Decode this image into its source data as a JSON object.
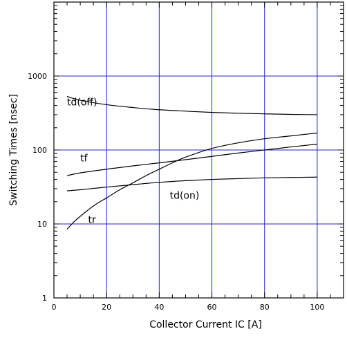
{
  "chart_data": {
    "type": "line",
    "title": "",
    "xlabel": "Collector Current IC [A]",
    "ylabel": "Switching Times [nsec]",
    "xlim": [
      0,
      110
    ],
    "ylim": [
      1,
      10000
    ],
    "yscale": "log",
    "grid": true,
    "grid_color": "#2222cc",
    "x_ticks": [
      0,
      20,
      40,
      60,
      80,
      100
    ],
    "x_tick_labels": [
      "0",
      "20",
      "40",
      "60",
      "80",
      "100"
    ],
    "y_ticks": [
      1,
      10,
      100,
      1000
    ],
    "y_tick_labels": [
      "1",
      "10",
      "100",
      "1000"
    ],
    "series": [
      {
        "name": "td(off)",
        "x": [
          5,
          10,
          20,
          30,
          40,
          50,
          60,
          70,
          80,
          90,
          100
        ],
        "y": [
          530,
          470,
          410,
          375,
          350,
          335,
          322,
          314,
          308,
          303,
          300
        ]
      },
      {
        "name": "tf",
        "x": [
          5,
          10,
          20,
          30,
          40,
          50,
          60,
          70,
          80,
          90,
          100
        ],
        "y": [
          45,
          49,
          55,
          61,
          67,
          74,
          82,
          91,
          100,
          110,
          120
        ]
      },
      {
        "name": "td(on)",
        "x": [
          5,
          10,
          20,
          30,
          40,
          50,
          60,
          70,
          80,
          90,
          100
        ],
        "y": [
          28,
          29,
          31.5,
          34,
          36.5,
          38.5,
          40,
          41,
          42,
          42.5,
          43
        ]
      },
      {
        "name": "tr",
        "x": [
          5,
          8,
          12,
          16,
          20,
          25,
          30,
          35,
          40,
          45,
          50,
          60,
          70,
          80,
          90,
          100
        ],
        "y": [
          8.5,
          11,
          14.5,
          18.5,
          22.5,
          29,
          36,
          45,
          55,
          67,
          80,
          105,
          125,
          142,
          155,
          170
        ]
      }
    ]
  }
}
